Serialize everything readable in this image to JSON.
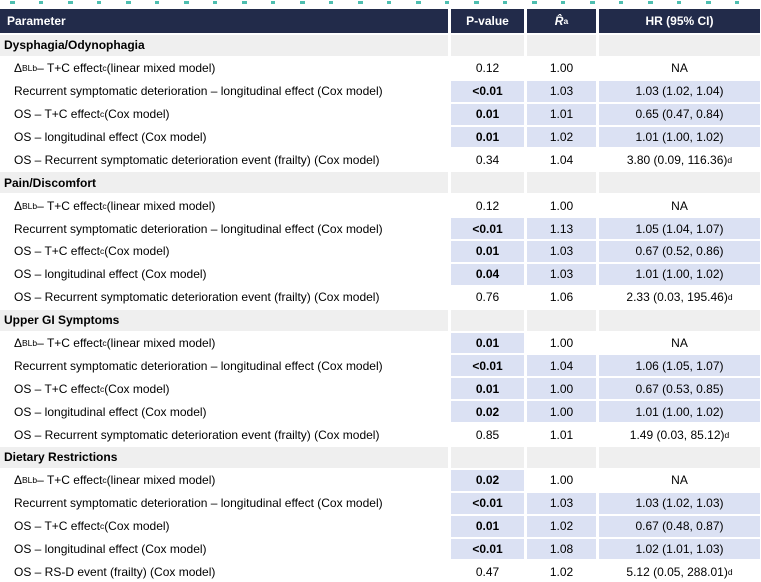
{
  "colors": {
    "header_bg": "#222b4a",
    "highlight_bg": "#dbe1f3",
    "section_bg": "#efefef",
    "remnant_teal": "#2eb3a2"
  },
  "table": {
    "columns": [
      {
        "label": "Parameter"
      },
      {
        "label": "P-value"
      },
      {
        "label_html": "<i>R̂</i><sup>a</sup>"
      },
      {
        "label": "HR (95% CI)"
      }
    ],
    "sections": [
      {
        "title": "Dysphagia/Odynophagia",
        "rows": [
          {
            "param": "Δ<sub>BL</sub><sup>b</sup> – T+C effect<sup>c</sup> (linear mixed model)",
            "p": "0.12",
            "sig": false,
            "r": "1.00",
            "hr": "NA",
            "highlight": "none"
          },
          {
            "param": "Recurrent symptomatic deterioration – longitudinal effect (Cox model)",
            "p": "<0.01",
            "sig": true,
            "r": "1.03",
            "hr": "1.03 (1.02, 1.04)",
            "highlight": "all"
          },
          {
            "param": "OS – T+C effect<sup>c</sup> (Cox model)",
            "p": "0.01",
            "sig": true,
            "r": "1.01",
            "hr": "0.65 (0.47, 0.84)",
            "highlight": "all"
          },
          {
            "param": "OS – longitudinal effect (Cox model)",
            "p": "0.01",
            "sig": true,
            "r": "1.02",
            "hr": "1.01 (1.00, 1.02)",
            "highlight": "all"
          },
          {
            "param": "OS – Recurrent symptomatic deterioration event (frailty) (Cox model)",
            "p": "0.34",
            "sig": false,
            "r": "1.04",
            "hr": "3.80 (0.09, 116.36)<sup>d</sup>",
            "highlight": "none"
          }
        ]
      },
      {
        "title": "Pain/Discomfort",
        "rows": [
          {
            "param": "Δ<sub>BL</sub><sup>b</sup> – T+C effect<sup>c</sup> (linear mixed model)",
            "p": "0.12",
            "sig": false,
            "r": "1.00",
            "hr": "NA",
            "highlight": "none"
          },
          {
            "param": "Recurrent symptomatic deterioration – longitudinal effect (Cox model)",
            "p": "<0.01",
            "sig": true,
            "r": "1.13",
            "hr": "1.05 (1.04, 1.07)",
            "highlight": "all"
          },
          {
            "param": "OS – T+C effect<sup>c</sup> (Cox model)",
            "p": "0.01",
            "sig": true,
            "r": "1.03",
            "hr": "0.67 (0.52, 0.86)",
            "highlight": "all"
          },
          {
            "param": "OS – longitudinal effect (Cox model)",
            "p": "0.04",
            "sig": true,
            "r": "1.03",
            "hr": "1.01 (1.00, 1.02)",
            "highlight": "all"
          },
          {
            "param": "OS – Recurrent symptomatic deterioration event (frailty) (Cox model)",
            "p": "0.76",
            "sig": false,
            "r": "1.06",
            "hr": "2.33 (0.03, 195.46)<sup>d</sup>",
            "highlight": "none"
          }
        ]
      },
      {
        "title": "Upper GI Symptoms",
        "rows": [
          {
            "param": "Δ<sub>BL</sub><sup>b</sup> – T+C effect<sup>c</sup> (linear mixed model)",
            "p": "0.01",
            "sig": true,
            "r": "1.00",
            "hr": "NA",
            "highlight": "p"
          },
          {
            "param": "Recurrent symptomatic deterioration – longitudinal effect (Cox model)",
            "p": "<0.01",
            "sig": true,
            "r": "1.04",
            "hr": "1.06 (1.05, 1.07)",
            "highlight": "all"
          },
          {
            "param": "OS – T+C effect<sup>c</sup> (Cox model)",
            "p": "0.01",
            "sig": true,
            "r": "1.00",
            "hr": "0.67 (0.53, 0.85)",
            "highlight": "all"
          },
          {
            "param": "OS – longitudinal effect (Cox model)",
            "p": "0.02",
            "sig": true,
            "r": "1.00",
            "hr": "1.01 (1.00, 1.02)",
            "highlight": "all"
          },
          {
            "param": "OS – Recurrent symptomatic deterioration event (frailty) (Cox model)",
            "p": "0.85",
            "sig": false,
            "r": "1.01",
            "hr": "1.49 (0.03, 85.12)<sup>d</sup>",
            "highlight": "none"
          }
        ]
      },
      {
        "title": "Dietary Restrictions",
        "rows": [
          {
            "param": "Δ<sub>BL</sub><sup>b</sup> – T+C effect<sup>c</sup> (linear mixed model)",
            "p": "0.02",
            "sig": true,
            "r": "1.00",
            "hr": "NA",
            "highlight": "p"
          },
          {
            "param": "Recurrent symptomatic deterioration – longitudinal effect (Cox model)",
            "p": "<0.01",
            "sig": true,
            "r": "1.03",
            "hr": "1.03 (1.02, 1.03)",
            "highlight": "all"
          },
          {
            "param": "OS – T+C effect<sup>c</sup> (Cox model)",
            "p": "0.01",
            "sig": true,
            "r": "1.02",
            "hr": "0.67 (0.48, 0.87)",
            "highlight": "all"
          },
          {
            "param": "OS – longitudinal effect (Cox model)",
            "p": "<0.01",
            "sig": true,
            "r": "1.08",
            "hr": "1.02 (1.01, 1.03)",
            "highlight": "all"
          },
          {
            "param": "OS – RS-D event (frailty) (Cox model)",
            "p": "0.47",
            "sig": false,
            "r": "1.02",
            "hr": "5.12 (0.05, 288.01)<sup>d</sup>",
            "highlight": "none"
          }
        ]
      }
    ]
  }
}
